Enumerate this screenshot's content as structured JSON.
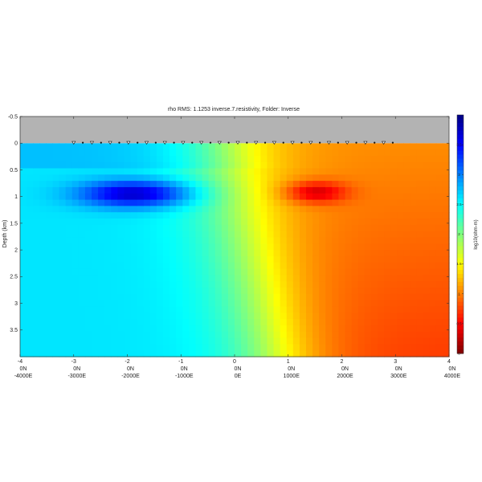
{
  "chart_data": {
    "type": "heatmap",
    "title": "rho RMS: 1.1253  inverse.7.resistivity, Folder: Inverse",
    "xlabel": "",
    "ylabel": "Depth (km)",
    "xlim": [
      -4,
      4
    ],
    "ylim": [
      -0.5,
      4
    ],
    "y_inverted": true,
    "x_ticks": [
      "-4",
      "-3",
      "-2",
      "-1",
      "0",
      "1",
      "2",
      "3",
      "4"
    ],
    "y_ticks": [
      "-0.5",
      "0",
      "0.5",
      "1",
      "1.5",
      "2",
      "2.5",
      "3",
      "3.5"
    ],
    "secondary_x_ticks": [
      {
        "line1": "0N",
        "line2": "-4000E"
      },
      {
        "line1": "0N",
        "line2": "-3000E"
      },
      {
        "line1": "0N",
        "line2": "-2000E"
      },
      {
        "line1": "0N",
        "line2": "-1000E"
      },
      {
        "line1": "0N",
        "line2": "0E"
      },
      {
        "line1": "0N",
        "line2": "1000E"
      },
      {
        "line1": "0N",
        "line2": "2000E"
      },
      {
        "line1": "0N",
        "line2": "3000E"
      },
      {
        "line1": "0N",
        "line2": "4000E"
      }
    ],
    "colorbar": {
      "label": "log10(ohm-m)",
      "colormap": "jet_reversed",
      "range": [
        0,
        4
      ],
      "ticks": [
        "3.5",
        "3",
        "2.5",
        "2",
        "1.5",
        "1",
        "0.5",
        "0"
      ]
    },
    "air_layer": {
      "y_top": -0.5,
      "y_bottom": 0,
      "color": "#b3b3b3"
    },
    "stations": {
      "x_start": -3,
      "x_end": 2.95,
      "count": 36,
      "symbol_pattern": [
        "triangle",
        "dot"
      ]
    },
    "anomalies": [
      {
        "name": "conductor",
        "x": -1.9,
        "y": 0.95,
        "log10_rho": 3.7,
        "sx": 1.0,
        "sy": 0.25
      },
      {
        "name": "resistor",
        "x": 1.55,
        "y": 0.92,
        "log10_rho": 0.35,
        "sx": 0.55,
        "sy": 0.2
      }
    ],
    "background": {
      "left_log10_rho": 2.6,
      "right_log10_rho": 1.05,
      "transition_x": -0.2
    }
  }
}
